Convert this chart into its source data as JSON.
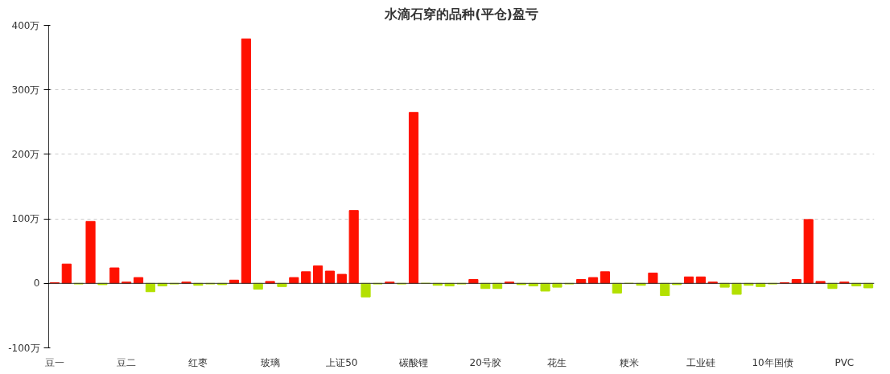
{
  "chart_data": {
    "type": "bar",
    "title": "水滴石穿的品种(平仓)盈亏",
    "categories": [
      "豆一",
      null,
      null,
      null,
      null,
      null,
      "豆二",
      null,
      null,
      null,
      null,
      null,
      "红枣",
      null,
      null,
      null,
      null,
      null,
      "玻璃",
      null,
      null,
      null,
      null,
      null,
      "上证50",
      null,
      null,
      null,
      null,
      null,
      "碳酸锂",
      null,
      null,
      null,
      null,
      null,
      "20号胶",
      null,
      null,
      null,
      null,
      null,
      "花生",
      null,
      null,
      null,
      null,
      null,
      "粳米",
      null,
      null,
      null,
      null,
      null,
      "工业硅",
      null,
      null,
      null,
      null,
      null,
      "10年国债",
      null,
      null,
      null,
      null,
      null,
      "PVC",
      null,
      null
    ],
    "values": [
      1,
      30,
      -1,
      96,
      -2,
      24,
      2,
      9,
      -13,
      -4,
      -1,
      2,
      -3,
      -1,
      -2,
      5,
      379,
      -9,
      3,
      -5,
      9,
      18,
      27,
      19,
      14,
      113,
      -21,
      -1,
      2,
      -1,
      265,
      0,
      -3,
      -4,
      -1,
      6,
      -8,
      -8,
      2,
      -2,
      -4,
      -12,
      -6,
      -1,
      6,
      9,
      18,
      -15,
      0,
      -3,
      16,
      -19,
      -2,
      10,
      10,
      2,
      -6,
      -17,
      -3,
      -5,
      -1,
      1,
      6,
      99,
      3,
      -8,
      2,
      -4,
      -7
    ],
    "colors": [
      "#ff1100",
      "#ff1100",
      "#b3e000",
      "#ff1100",
      "#b3e000",
      "#ff1100",
      "#ff1100",
      "#ff1100",
      "#b3e000",
      "#b3e000",
      "#b3e000",
      "#ff1100",
      "#b3e000",
      "#b3e000",
      "#b3e000",
      "#ff1100",
      "#ff1100",
      "#b3e000",
      "#ff1100",
      "#b3e000",
      "#ff1100",
      "#ff1100",
      "#ff1100",
      "#ff1100",
      "#ff1100",
      "#ff1100",
      "#b3e000",
      "#b3e000",
      "#ff1100",
      "#b3e000",
      "#ff1100",
      "#b3e000",
      "#b3e000",
      "#b3e000",
      "#b3e000",
      "#ff1100",
      "#b3e000",
      "#b3e000",
      "#ff1100",
      "#b3e000",
      "#b3e000",
      "#b3e000",
      "#b3e000",
      "#b3e000",
      "#ff1100",
      "#ff1100",
      "#ff1100",
      "#b3e000",
      "#b3e000",
      "#b3e000",
      "#ff1100",
      "#b3e000",
      "#b3e000",
      "#ff1100",
      "#ff1100",
      "#ff1100",
      "#b3e000",
      "#b3e000",
      "#b3e000",
      "#b3e000",
      "#b3e000",
      "#ff1100",
      "#ff1100",
      "#ff1100",
      "#ff1100",
      "#b3e000",
      "#ff1100",
      "#b3e000",
      "#b3e000"
    ],
    "ylim": [
      -100,
      400
    ],
    "yticks": [
      {
        "value": -100,
        "label": "-100万"
      },
      {
        "value": 0,
        "label": "0"
      },
      {
        "value": 100,
        "label": "100万"
      },
      {
        "value": 200,
        "label": "200万"
      },
      {
        "value": 300,
        "label": "300万"
      },
      {
        "value": 400,
        "label": "400万"
      }
    ],
    "grid": "y"
  }
}
